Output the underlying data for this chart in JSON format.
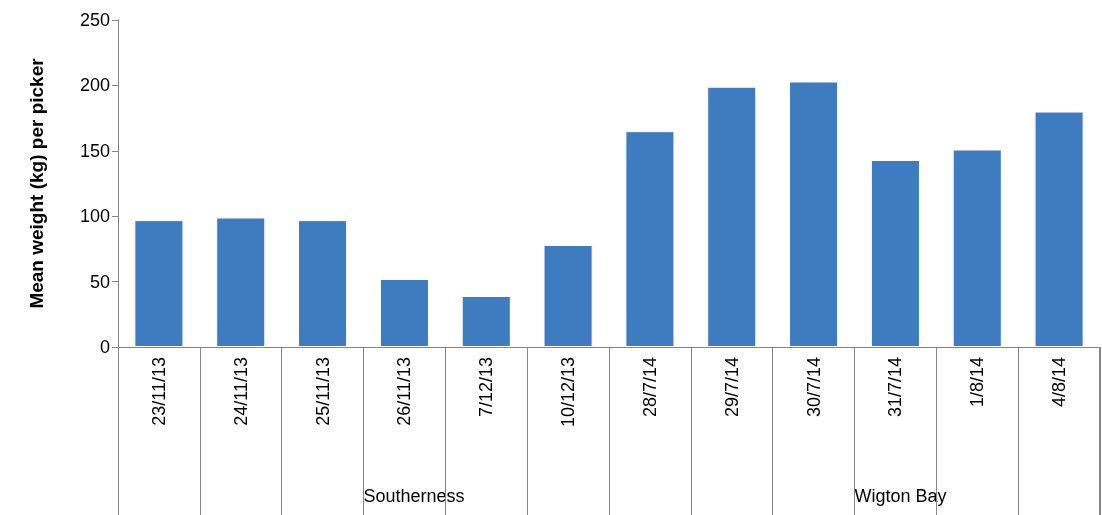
{
  "chart_data": {
    "type": "bar",
    "ylabel": "Mean weight (kg) per picker",
    "categories": [
      "23/11/13",
      "24/11/13",
      "25/11/13",
      "26/11/13",
      "7/12/13",
      "10/12/13",
      "28/7/14",
      "29/7/14",
      "30/7/14",
      "31/7/14",
      "1/8/14",
      "4/8/14"
    ],
    "values": [
      97,
      99,
      97,
      52,
      39,
      78,
      165,
      199,
      203,
      143,
      151,
      180
    ],
    "color": "#3f7cbf",
    "ylim": [
      0,
      250
    ],
    "yticks": [
      0,
      50,
      100,
      150,
      200,
      250
    ],
    "grid": false,
    "annotations": [
      "Southerness",
      "Wigton Bay"
    ]
  }
}
